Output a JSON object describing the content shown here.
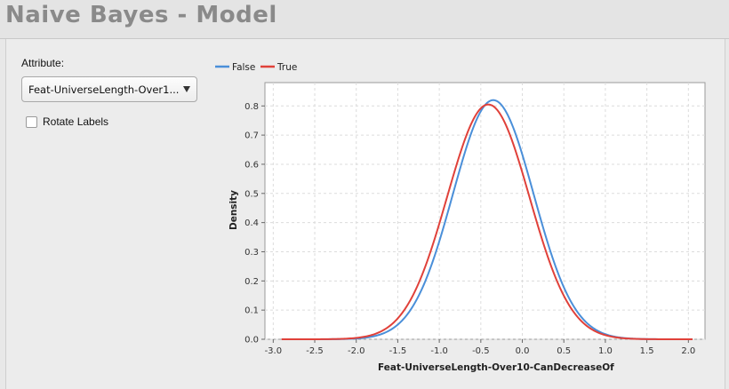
{
  "window": {
    "title": "Naive Bayes - Model"
  },
  "attribute": {
    "label": "Attribute:",
    "selected": "Feat-UniverseLength-Over1..."
  },
  "rotate_labels": {
    "label": "Rotate Labels",
    "checked": false
  },
  "legend": [
    {
      "name": "False",
      "color": "#4a8fd9"
    },
    {
      "name": "True",
      "color": "#e0413a"
    }
  ],
  "chart_data": {
    "type": "line",
    "xlabel": "Feat-UniverseLength-Over10-CanDecreaseOf",
    "ylabel": "Density",
    "xlim": [
      -3.1,
      2.2
    ],
    "ylim": [
      0,
      0.88
    ],
    "xticks": [
      "-3.0",
      "-2.5",
      "-2.0",
      "-1.5",
      "-1.0",
      "-0.5",
      "0.0",
      "0.5",
      "1.0",
      "1.5",
      "2.0"
    ],
    "yticks": [
      "0.0",
      "0.1",
      "0.2",
      "0.3",
      "0.4",
      "0.5",
      "0.6",
      "0.7",
      "0.8"
    ],
    "grid": true,
    "legend_position": "top-left",
    "series": [
      {
        "name": "False",
        "color": "#4a8fd9",
        "x_range": [
          -2.9,
          2.05
        ],
        "distribution": "gaussian",
        "mean": -0.35,
        "peak_density": 0.82
      },
      {
        "name": "True",
        "color": "#e0413a",
        "x_range": [
          -2.9,
          2.05
        ],
        "distribution": "gaussian",
        "mean": -0.41,
        "peak_density": 0.805
      }
    ]
  }
}
